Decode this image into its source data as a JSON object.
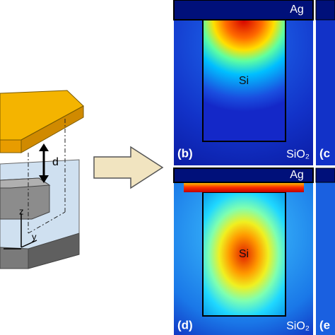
{
  "schematic": {
    "gap_label": "d",
    "axis_labels": [
      "z",
      "y"
    ]
  },
  "panels": [
    {
      "label": "(b)",
      "metal": "Ag",
      "core": "Si",
      "substrate": "SiO₂"
    },
    {
      "label": "(d)",
      "metal": "Ag",
      "core": "Si",
      "substrate": "SiO₂"
    }
  ],
  "partial_panels": [
    {
      "label": "(c"
    },
    {
      "label": "(e"
    }
  ]
}
